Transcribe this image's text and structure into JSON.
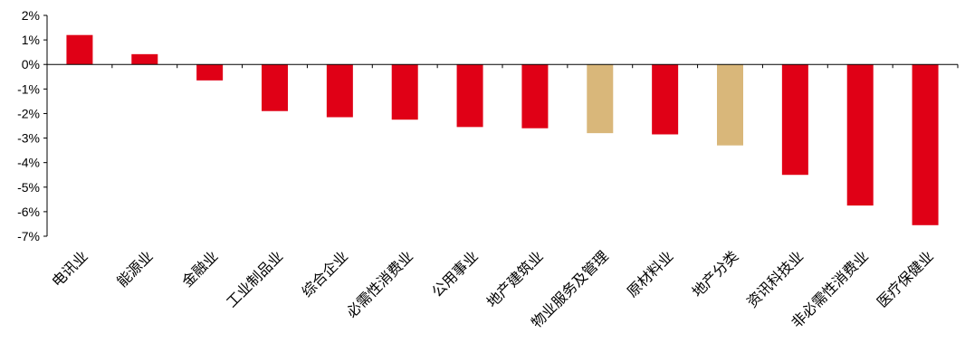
{
  "chart_data": {
    "type": "bar",
    "title": "",
    "xlabel": "",
    "ylabel": "",
    "ylim": [
      -7,
      2
    ],
    "yticks": [
      "2%",
      "1%",
      "0%",
      "-1%",
      "-2%",
      "-3%",
      "-4%",
      "-5%",
      "-6%",
      "-7%"
    ],
    "ytick_values": [
      2,
      1,
      0,
      -1,
      -2,
      -3,
      -4,
      -5,
      -6,
      -7
    ],
    "grid": false,
    "legend": "none",
    "categories": [
      "电讯业",
      "能源业",
      "金融业",
      "工业制品业",
      "综合企业",
      "必需性消费业",
      "公用事业",
      "地产建筑业",
      "物业服务及管理",
      "原材料业",
      "地产分类",
      "资讯科技业",
      "非必需性消费业",
      "医疗保健业"
    ],
    "values": [
      1.2,
      0.42,
      -0.65,
      -1.9,
      -2.15,
      -2.25,
      -2.55,
      -2.6,
      -2.8,
      -2.85,
      -3.3,
      -4.5,
      -5.75,
      -6.55
    ],
    "highlight": [
      false,
      false,
      false,
      false,
      false,
      false,
      false,
      false,
      true,
      false,
      true,
      false,
      false,
      false
    ],
    "colors": {
      "default": "#e00016",
      "highlight": "#d9b77a",
      "axis": "#000000"
    }
  }
}
